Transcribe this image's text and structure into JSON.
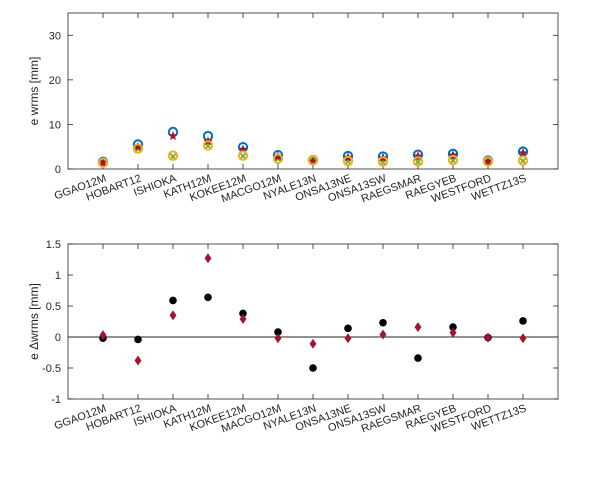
{
  "chart_data": [
    {
      "type": "scatter",
      "title": "",
      "xlabel": "",
      "ylabel": "e wrms [mm]",
      "ylim": [
        0,
        35
      ],
      "yticks": [
        "0",
        "10",
        "20",
        "30"
      ],
      "grid": false,
      "legend": "none",
      "categories": [
        "GGAO12M",
        "HOBART12",
        "ISHIOKA",
        "KATH12M",
        "KOKEE12M",
        "MACGO12M",
        "NYALE13N",
        "ONSA13NE",
        "ONSA13SW",
        "RAEGSMAR",
        "RAEGYEB",
        "WESTFORD",
        "WETTZ13S"
      ],
      "series": [
        {
          "marker": "circle",
          "color": "#0072BD",
          "values": [
            1.6,
            5.5,
            8.3,
            7.4,
            4.9,
            3.1,
            2.0,
            2.9,
            2.8,
            3.2,
            3.4,
            1.9,
            3.9
          ]
        },
        {
          "marker": "x",
          "color": "#77AC30",
          "values": [
            1.4,
            4.5,
            2.8,
            5.2,
            2.9,
            2.3,
            2.0,
            1.7,
            1.6,
            1.6,
            1.9,
            1.7,
            1.8
          ]
        },
        {
          "marker": "star",
          "color": "#A2142F",
          "values": [
            1.5,
            5.0,
            7.4,
            6.2,
            4.4,
            2.8,
            1.8,
            2.6,
            2.5,
            2.9,
            3.1,
            1.7,
            3.6
          ]
        },
        {
          "marker": "circle",
          "color": "#EDB120",
          "values": [
            1.4,
            4.6,
            3.0,
            5.3,
            3.0,
            2.3,
            2.0,
            1.8,
            1.7,
            1.7,
            2.0,
            1.7,
            1.9
          ]
        }
      ]
    },
    {
      "type": "scatter",
      "title": "",
      "xlabel": "",
      "ylabel": "e Δwrms [mm]",
      "ylim": [
        -1,
        1.5
      ],
      "yticks": [
        "-1",
        "-0.5",
        "0",
        "0.5",
        "1",
        "1.5"
      ],
      "grid": false,
      "legend": "none",
      "zero_line": true,
      "categories": [
        "GGAO12M",
        "HOBART12",
        "ISHIOKA",
        "KATH12M",
        "KOKEE12M",
        "MACGO12M",
        "NYALE13N",
        "ONSA13NE",
        "ONSA13SW",
        "RAEGSMAR",
        "RAEGYEB",
        "WESTFORD",
        "WETTZ13S"
      ],
      "series": [
        {
          "marker": "dot",
          "color": "#000000",
          "values": [
            -0.02,
            -0.04,
            0.59,
            0.64,
            0.38,
            0.08,
            -0.5,
            0.14,
            0.23,
            -0.34,
            0.16,
            -0.01,
            0.26
          ]
        },
        {
          "marker": "diamond",
          "color": "#A2142F",
          "values": [
            0.03,
            -0.38,
            0.35,
            1.27,
            0.29,
            -0.02,
            -0.11,
            -0.02,
            0.04,
            0.16,
            0.07,
            -0.01,
            -0.02
          ]
        }
      ]
    }
  ]
}
